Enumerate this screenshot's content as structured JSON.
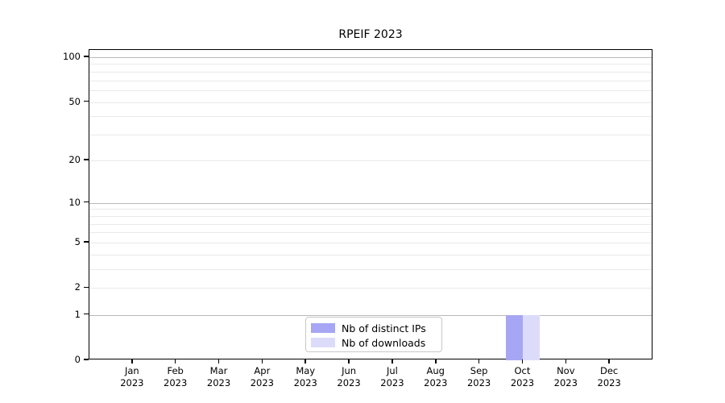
{
  "chart_data": {
    "type": "bar",
    "title": "RPEIF 2023",
    "categories": [
      "Jan",
      "Feb",
      "Mar",
      "Apr",
      "May",
      "Jun",
      "Jul",
      "Aug",
      "Sep",
      "Oct",
      "Nov",
      "Dec"
    ],
    "category_year": "2023",
    "series": [
      {
        "name": "Nb of distinct IPs",
        "color": "#a6a6f4",
        "values": [
          0,
          0,
          0,
          0,
          0,
          0,
          0,
          0,
          0,
          1,
          0,
          0
        ]
      },
      {
        "name": "Nb of downloads",
        "color": "#dcdcfa",
        "values": [
          0,
          0,
          0,
          0,
          0,
          0,
          0,
          0,
          0,
          1,
          0,
          0
        ]
      }
    ],
    "yscale": "log1p",
    "ylim": [
      0,
      100
    ],
    "yticks": [
      0,
      1,
      2,
      5,
      10,
      20,
      50,
      100
    ],
    "major_gridlines": [
      1,
      10,
      100
    ],
    "minor_gridlines": [
      2,
      3,
      4,
      5,
      6,
      7,
      8,
      9,
      20,
      30,
      40,
      50,
      60,
      70,
      80,
      90
    ],
    "grid": "on",
    "legend_position": "inside-bottom-center",
    "colors": {
      "axis": "#000000",
      "grid_major": "#b9b9b9",
      "grid_minor": "#e9e9e9",
      "legend_border": "#c8c8c8",
      "background": "#ffffff"
    }
  }
}
